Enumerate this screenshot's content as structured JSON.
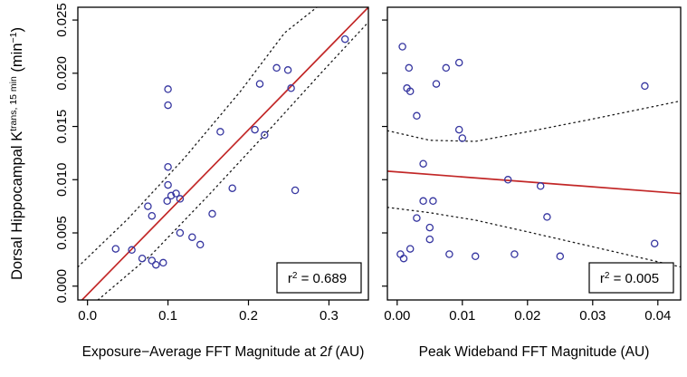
{
  "colors": {
    "background": "#ffffff",
    "point": "#3636a0",
    "fit_line": "#c22727",
    "band": "#1a1a1a",
    "frame": "#000000"
  },
  "y_axis": {
    "title_base": "Dorsal Hippocampal K",
    "title_sup": "trans, 15 min",
    "title_unit_open": " (min",
    "title_unit_sup": "−1",
    "title_unit_close": ")",
    "tick_labels": [
      "0.000",
      "0.005",
      "0.010",
      "0.015",
      "0.020",
      "0.025"
    ],
    "tick_values": [
      0,
      0.005,
      0.01,
      0.015,
      0.02,
      0.025
    ]
  },
  "chart_data": [
    {
      "type": "scatter",
      "title": "",
      "xlabel_pre": "Exposure−Average FFT Magnitude at 2",
      "xlabel_italic": "f",
      "xlabel_post": " (AU)",
      "xtick_labels": [
        "0.0",
        "0.1",
        "0.2",
        "0.3"
      ],
      "xtick_values": [
        0,
        0.1,
        0.2,
        0.3
      ],
      "xlim": [
        -0.012,
        0.349
      ],
      "ylim": [
        -0.0013,
        0.0262
      ],
      "r2_base": "r",
      "r2_sup": "2",
      "r2_rest": " = 0.689",
      "r2_value": 0.689,
      "points": [
        [
          0.035,
          0.0035
        ],
        [
          0.055,
          0.0034
        ],
        [
          0.068,
          0.0026
        ],
        [
          0.075,
          0.0075
        ],
        [
          0.08,
          0.0066
        ],
        [
          0.08,
          0.0024
        ],
        [
          0.085,
          0.002
        ],
        [
          0.094,
          0.0022
        ],
        [
          0.1,
          0.0185
        ],
        [
          0.1,
          0.017
        ],
        [
          0.1,
          0.0112
        ],
        [
          0.1,
          0.0095
        ],
        [
          0.104,
          0.0085
        ],
        [
          0.099,
          0.008
        ],
        [
          0.11,
          0.0087
        ],
        [
          0.115,
          0.0082
        ],
        [
          0.115,
          0.005
        ],
        [
          0.13,
          0.0046
        ],
        [
          0.14,
          0.0039
        ],
        [
          0.155,
          0.0068
        ],
        [
          0.165,
          0.0145
        ],
        [
          0.18,
          0.0092
        ],
        [
          0.208,
          0.0147
        ],
        [
          0.214,
          0.019
        ],
        [
          0.22,
          0.0142
        ],
        [
          0.235,
          0.0205
        ],
        [
          0.249,
          0.0203
        ],
        [
          0.253,
          0.0186
        ],
        [
          0.258,
          0.009
        ],
        [
          0.32,
          0.0232
        ]
      ],
      "fit_line": [
        [
          -0.012,
          -0.0017
        ],
        [
          0.349,
          0.0262
        ]
      ],
      "band_upper": [
        [
          -0.012,
          0.0018
        ],
        [
          0.05,
          0.0063
        ],
        [
          0.12,
          0.012
        ],
        [
          0.19,
          0.0183
        ],
        [
          0.245,
          0.0238
        ],
        [
          0.285,
          0.0262
        ]
      ],
      "band_lower": [
        [
          0.013,
          -0.0013
        ],
        [
          0.08,
          0.003
        ],
        [
          0.15,
          0.0085
        ],
        [
          0.22,
          0.0142
        ],
        [
          0.29,
          0.02
        ],
        [
          0.349,
          0.0248
        ]
      ]
    },
    {
      "type": "scatter",
      "title": "",
      "xlabel_pre": "Peak Wideband FFT Magnitude (AU)",
      "xlabel_italic": "",
      "xlabel_post": "",
      "xtick_labels": [
        "0.00",
        "0.01",
        "0.02",
        "0.03",
        "0.04"
      ],
      "xtick_values": [
        0,
        0.01,
        0.02,
        0.03,
        0.04
      ],
      "xlim": [
        -0.0015,
        0.0435
      ],
      "ylim": [
        -0.0013,
        0.0262
      ],
      "r2_base": "r",
      "r2_sup": "2",
      "r2_rest": " = 0.005",
      "r2_value": 0.005,
      "points": [
        [
          0.0008,
          0.0225
        ],
        [
          0.0018,
          0.0205
        ],
        [
          0.0015,
          0.0186
        ],
        [
          0.002,
          0.0183
        ],
        [
          0.003,
          0.016
        ],
        [
          0.004,
          0.0115
        ],
        [
          0.0005,
          0.003
        ],
        [
          0.001,
          0.0026
        ],
        [
          0.002,
          0.0035
        ],
        [
          0.003,
          0.0064
        ],
        [
          0.004,
          0.008
        ],
        [
          0.0055,
          0.008
        ],
        [
          0.005,
          0.0055
        ],
        [
          0.005,
          0.0044
        ],
        [
          0.006,
          0.019
        ],
        [
          0.0075,
          0.0205
        ],
        [
          0.008,
          0.003
        ],
        [
          0.0095,
          0.021
        ],
        [
          0.0095,
          0.0147
        ],
        [
          0.01,
          0.0139
        ],
        [
          0.012,
          0.0028
        ],
        [
          0.017,
          0.01
        ],
        [
          0.018,
          0.003
        ],
        [
          0.022,
          0.0094
        ],
        [
          0.023,
          0.0065
        ],
        [
          0.025,
          0.0028
        ],
        [
          0.038,
          0.0188
        ],
        [
          0.0395,
          0.004
        ]
      ],
      "fit_line": [
        [
          -0.0015,
          0.0108
        ],
        [
          0.0435,
          0.0087
        ]
      ],
      "band_upper": [
        [
          -0.0015,
          0.0146
        ],
        [
          0.005,
          0.0137
        ],
        [
          0.012,
          0.0136
        ],
        [
          0.02,
          0.0145
        ],
        [
          0.03,
          0.0157
        ],
        [
          0.0435,
          0.0174
        ]
      ],
      "band_lower": [
        [
          -0.0015,
          0.0074
        ],
        [
          0.005,
          0.0069
        ],
        [
          0.012,
          0.0062
        ],
        [
          0.02,
          0.0051
        ],
        [
          0.03,
          0.0037
        ],
        [
          0.0435,
          0.0018
        ]
      ]
    }
  ]
}
